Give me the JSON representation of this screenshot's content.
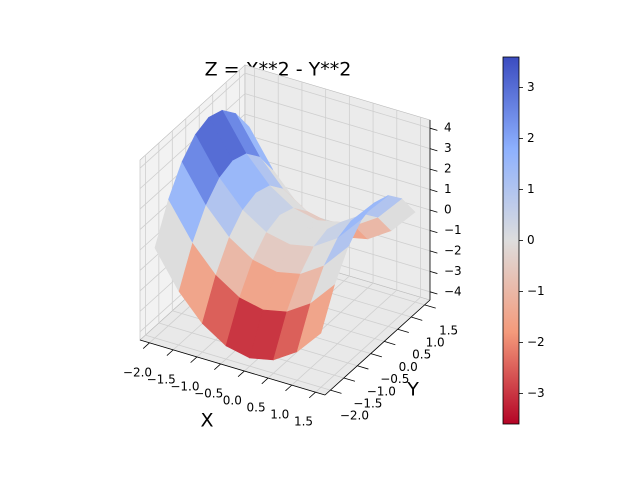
{
  "chart_data": {
    "type": "surface",
    "title": "Z = X**2 - Y**2",
    "xlabel": "X",
    "ylabel": "Y",
    "x": [
      -2,
      -1.5,
      -1,
      -0.5,
      0,
      0.5,
      1,
      1.5
    ],
    "y": [
      -2,
      -1.5,
      -1,
      -0.5,
      0,
      0.5,
      1,
      1.5
    ],
    "z": [
      [
        0,
        -1.75,
        -3,
        -3.75,
        -4,
        -3.75,
        -3,
        -1.75
      ],
      [
        1.75,
        0,
        -1.25,
        -2,
        -2.25,
        -2,
        -1.25,
        0
      ],
      [
        3,
        1.25,
        0,
        -0.75,
        -1,
        -0.75,
        0,
        1.25
      ],
      [
        3.75,
        2,
        0.75,
        0,
        -0.25,
        0,
        0.75,
        2
      ],
      [
        4,
        2.25,
        1,
        0.25,
        0,
        0.25,
        1,
        2.25
      ],
      [
        3.75,
        2,
        0.75,
        0,
        -0.25,
        0,
        0.75,
        2
      ],
      [
        3,
        1.25,
        0,
        -0.75,
        -1,
        -0.75,
        0,
        1.25
      ],
      [
        1.75,
        0,
        -1.25,
        -2,
        -2.25,
        -2,
        -1.25,
        0
      ]
    ],
    "xlim": [
      -2.2,
      1.7
    ],
    "ylim": [
      -2.2,
      1.7
    ],
    "zlim": [
      -4.4,
      4.4
    ],
    "xticks": [
      {
        "value": -2,
        "label": "−2.0"
      },
      {
        "value": -1.5,
        "label": "−1.5"
      },
      {
        "value": -1,
        "label": "−1.0"
      },
      {
        "value": -0.5,
        "label": "−0.5"
      },
      {
        "value": 0,
        "label": "0.0"
      },
      0.5,
      {
        "value": 1,
        "label": "1.0"
      },
      1.5
    ],
    "yticks": [
      {
        "value": -2,
        "label": "−2.0"
      },
      {
        "value": -1.5,
        "label": "−1.5"
      },
      {
        "value": -1,
        "label": "−1.0"
      },
      {
        "value": -0.5,
        "label": "−0.5"
      },
      {
        "value": 0,
        "label": "0.0"
      },
      0.5,
      {
        "value": 1,
        "label": "1.0"
      },
      1.5
    ],
    "zticks": [
      {
        "value": -4,
        "label": "−4"
      },
      {
        "value": -3,
        "label": "−3"
      },
      {
        "value": -2,
        "label": "−2"
      },
      {
        "value": -1,
        "label": "−1"
      },
      0,
      1,
      2,
      3,
      4
    ],
    "cmap": "coolwarm_r",
    "clim": [
      -3.6,
      3.6
    ],
    "cticks": [
      {
        "value": -3,
        "label": "−3"
      },
      {
        "value": -2,
        "label": "−2"
      },
      {
        "value": -1,
        "label": "−1"
      },
      0,
      1,
      2,
      3
    ],
    "grid": true
  }
}
